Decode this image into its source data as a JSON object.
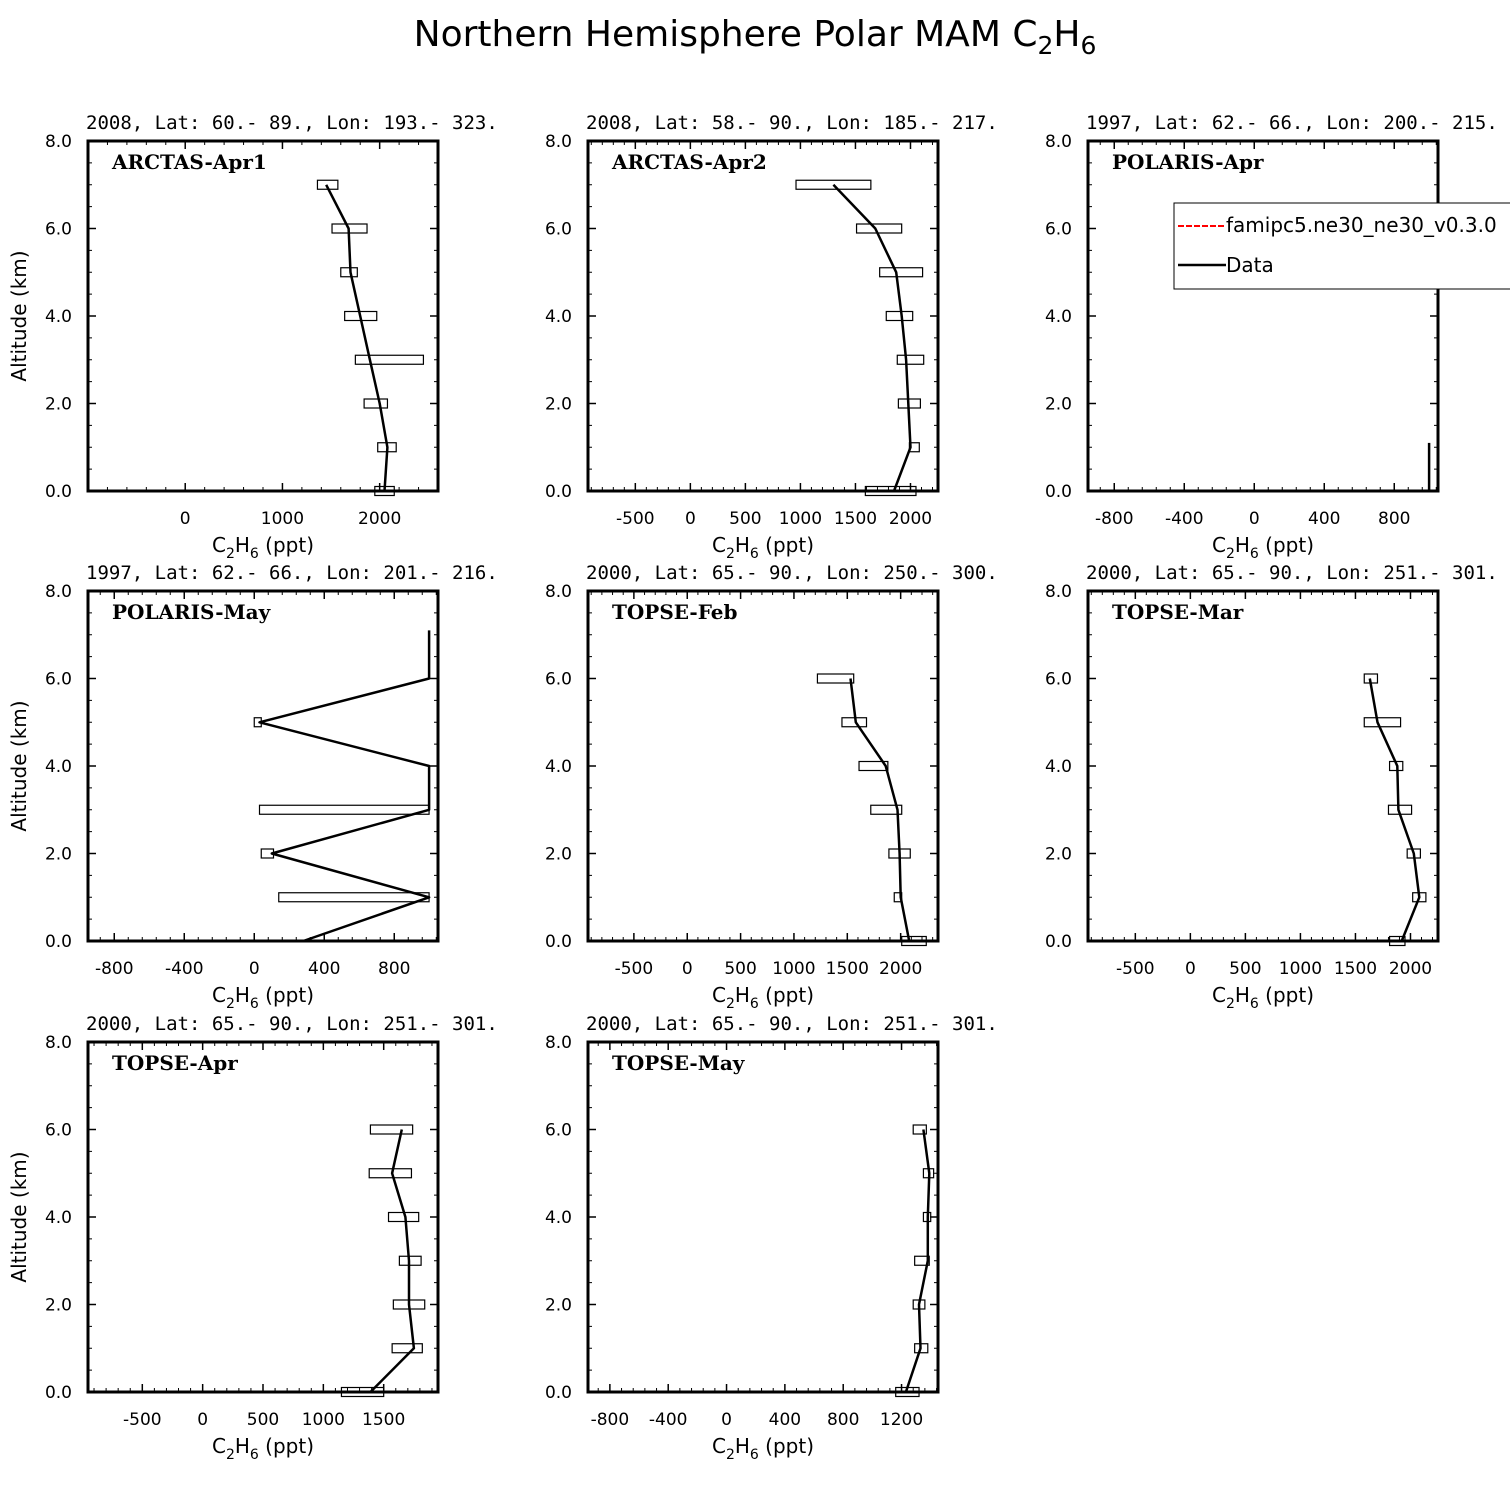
{
  "title_main": "Northern Hemisphere Polar MAM C",
  "title_sub1": "2",
  "title_h": "H",
  "title_sub2": "6",
  "legend": {
    "model": "famipc5.ne30_ne30_v0.3.0",
    "data": "Data",
    "model_color": "#ff0000",
    "data_color": "#000000"
  },
  "xlabel_c": "C",
  "xlabel_sub1": "2",
  "xlabel_h": "H",
  "xlabel_sub2": "6",
  "xlabel_units": " (ppt)",
  "ylabel": "Altitude (km)",
  "chart_data": [
    {
      "type": "line",
      "header": "2008, Lat:  60.- 89., Lon: 193.- 323.",
      "label": "ARCTAS-Apr1",
      "xlim": [
        -1000,
        2600
      ],
      "xticks": [
        0,
        1000,
        2000
      ],
      "ylim": [
        0,
        8
      ],
      "yticks": [
        "0.0",
        "2.0",
        "4.0",
        "6.0",
        "8.0"
      ],
      "show_ylabel": true,
      "series": [
        {
          "name": "Data",
          "x": [
            2050,
            2080,
            2000,
            1900,
            1800,
            1700,
            1680,
            1450
          ],
          "y": [
            0,
            1,
            2,
            3,
            4,
            5,
            6,
            7
          ]
        }
      ],
      "boxes": [
        {
          "y": 0,
          "x1": 1950,
          "x2": 2150
        },
        {
          "y": 1,
          "x1": 1980,
          "x2": 2170
        },
        {
          "y": 2,
          "x1": 1840,
          "x2": 2080
        },
        {
          "y": 3,
          "x1": 1750,
          "x2": 2450
        },
        {
          "y": 4,
          "x1": 1640,
          "x2": 1970
        },
        {
          "y": 5,
          "x1": 1600,
          "x2": 1770
        },
        {
          "y": 6,
          "x1": 1510,
          "x2": 1870
        },
        {
          "y": 7,
          "x1": 1360,
          "x2": 1570
        }
      ]
    },
    {
      "type": "line",
      "header": "2008, Lat:  58.- 90., Lon: 185.- 217.",
      "label": "ARCTAS-Apr2",
      "xlim": [
        -930,
        2250
      ],
      "xticks": [
        -500,
        0,
        500,
        1000,
        1500,
        2000
      ],
      "ylim": [
        0,
        8
      ],
      "yticks": [
        "0.0",
        "2.0",
        "4.0",
        "6.0",
        "8.0"
      ],
      "show_ylabel": false,
      "series": [
        {
          "name": "Data",
          "x": [
            1850,
            2000,
            1980,
            1960,
            1920,
            1870,
            1680,
            1300
          ],
          "y": [
            0,
            1,
            2,
            3,
            4,
            5,
            6,
            7
          ]
        }
      ],
      "boxes": [
        {
          "y": 0,
          "x1": 1590,
          "x2": 2050
        },
        {
          "y": 1,
          "x1": 1990,
          "x2": 2080
        },
        {
          "y": 2,
          "x1": 1890,
          "x2": 2090
        },
        {
          "y": 3,
          "x1": 1880,
          "x2": 2120
        },
        {
          "y": 4,
          "x1": 1780,
          "x2": 2020
        },
        {
          "y": 5,
          "x1": 1720,
          "x2": 2110
        },
        {
          "y": 6,
          "x1": 1510,
          "x2": 1920
        },
        {
          "y": 7,
          "x1": 960,
          "x2": 1640
        }
      ]
    },
    {
      "type": "line",
      "header": "1997, Lat: 62.- 66., Lon: 200.- 215.",
      "label": "POLARIS-Apr",
      "xlim": [
        -950,
        1050
      ],
      "xticks": [
        -800,
        -400,
        0,
        400,
        800
      ],
      "ylim": [
        0,
        8
      ],
      "yticks": [
        "0.0",
        "2.0",
        "4.0",
        "6.0",
        "8.0"
      ],
      "show_ylabel": false,
      "show_legend": true,
      "series": [
        {
          "name": "Data",
          "x": [
            999,
            999
          ],
          "y": [
            0,
            1.1
          ]
        }
      ],
      "boxes": []
    },
    {
      "type": "line",
      "header": "1997, Lat: 62.- 66., Lon: 201.- 216.",
      "label": "POLARIS-May",
      "xlim": [
        -950,
        1050
      ],
      "xticks": [
        -800,
        -400,
        0,
        400,
        800
      ],
      "ylim": [
        0,
        8
      ],
      "yticks": [
        "0.0",
        "2.0",
        "4.0",
        "6.0",
        "8.0"
      ],
      "show_ylabel": true,
      "series": [
        {
          "name": "Data",
          "x": [
            280,
            999,
            100,
            999,
            999,
            30,
            999,
            999
          ],
          "y": [
            0,
            1,
            2,
            3,
            4,
            5,
            6,
            7.1
          ]
        }
      ],
      "boxes": [
        {
          "y": 1,
          "x1": 140,
          "x2": 999
        },
        {
          "y": 2,
          "x1": 40,
          "x2": 110
        },
        {
          "y": 3,
          "x1": 30,
          "x2": 999
        },
        {
          "y": 5,
          "x1": 0,
          "x2": 40
        }
      ]
    },
    {
      "type": "line",
      "header": "2000, Lat: 65.- 90., Lon: 250.- 300.",
      "label": "TOPSE-Feb",
      "xlim": [
        -930,
        2350
      ],
      "xticks": [
        -500,
        0,
        500,
        1000,
        1500,
        2000
      ],
      "ylim": [
        0,
        8
      ],
      "yticks": [
        "0.0",
        "2.0",
        "4.0",
        "6.0",
        "8.0"
      ],
      "show_ylabel": false,
      "series": [
        {
          "name": "Data",
          "x": [
            2080,
            2000,
            1990,
            1970,
            1860,
            1580,
            1530
          ],
          "y": [
            0,
            1,
            2,
            3,
            4,
            5,
            6
          ]
        }
      ],
      "boxes": [
        {
          "y": 0,
          "x1": 2010,
          "x2": 2240
        },
        {
          "y": 1,
          "x1": 1940,
          "x2": 2010
        },
        {
          "y": 2,
          "x1": 1890,
          "x2": 2090
        },
        {
          "y": 3,
          "x1": 1720,
          "x2": 2010
        },
        {
          "y": 4,
          "x1": 1610,
          "x2": 1880
        },
        {
          "y": 5,
          "x1": 1450,
          "x2": 1680
        },
        {
          "y": 6,
          "x1": 1220,
          "x2": 1560
        }
      ]
    },
    {
      "type": "line",
      "header": "2000, Lat: 65.- 90., Lon: 251.- 301.",
      "label": "TOPSE-Mar",
      "xlim": [
        -930,
        2250
      ],
      "xticks": [
        -500,
        0,
        500,
        1000,
        1500,
        2000
      ],
      "ylim": [
        0,
        8
      ],
      "yticks": [
        "0.0",
        "2.0",
        "4.0",
        "6.0",
        "8.0"
      ],
      "show_ylabel": false,
      "series": [
        {
          "name": "Data",
          "x": [
            1920,
            2080,
            2030,
            1890,
            1880,
            1700,
            1630
          ],
          "y": [
            0,
            1,
            2,
            3,
            4,
            5,
            6
          ]
        }
      ],
      "boxes": [
        {
          "y": 0,
          "x1": 1810,
          "x2": 1950
        },
        {
          "y": 1,
          "x1": 2020,
          "x2": 2140
        },
        {
          "y": 2,
          "x1": 1970,
          "x2": 2090
        },
        {
          "y": 3,
          "x1": 1800,
          "x2": 2010
        },
        {
          "y": 4,
          "x1": 1810,
          "x2": 1930
        },
        {
          "y": 5,
          "x1": 1580,
          "x2": 1910
        },
        {
          "y": 6,
          "x1": 1580,
          "x2": 1700
        }
      ]
    },
    {
      "type": "line",
      "header": "2000, Lat: 65.- 90., Lon: 251.- 301.",
      "label": "TOPSE-Apr",
      "xlim": [
        -950,
        1950
      ],
      "xticks": [
        -500,
        0,
        500,
        1000,
        1500
      ],
      "ylim": [
        0,
        8
      ],
      "yticks": [
        "0.0",
        "2.0",
        "4.0",
        "6.0",
        "8.0"
      ],
      "show_ylabel": true,
      "series": [
        {
          "name": "Data",
          "x": [
            1390,
            1750,
            1710,
            1710,
            1680,
            1570,
            1650
          ],
          "y": [
            0,
            1,
            2,
            3,
            4,
            5,
            6
          ]
        }
      ],
      "boxes": [
        {
          "y": 0,
          "x1": 1150,
          "x2": 1500
        },
        {
          "y": 1,
          "x1": 1570,
          "x2": 1820
        },
        {
          "y": 2,
          "x1": 1580,
          "x2": 1840
        },
        {
          "y": 3,
          "x1": 1630,
          "x2": 1810
        },
        {
          "y": 4,
          "x1": 1540,
          "x2": 1790
        },
        {
          "y": 5,
          "x1": 1380,
          "x2": 1730
        },
        {
          "y": 6,
          "x1": 1390,
          "x2": 1740
        }
      ]
    },
    {
      "type": "line",
      "header": "2000, Lat: 65.- 90., Lon: 251.- 301.",
      "label": "TOPSE-May",
      "xlim": [
        -950,
        1450
      ],
      "xticks": [
        -800,
        -400,
        0,
        400,
        800,
        1200
      ],
      "ylim": [
        0,
        8
      ],
      "yticks": [
        "0.0",
        "2.0",
        "4.0",
        "6.0",
        "8.0"
      ],
      "show_ylabel": false,
      "series": [
        {
          "name": "Data",
          "x": [
            1230,
            1330,
            1320,
            1380,
            1380,
            1390,
            1350
          ],
          "y": [
            0,
            1,
            2,
            3,
            4,
            5,
            6
          ]
        }
      ],
      "boxes": [
        {
          "y": 0,
          "x1": 1160,
          "x2": 1320
        },
        {
          "y": 1,
          "x1": 1290,
          "x2": 1380
        },
        {
          "y": 2,
          "x1": 1280,
          "x2": 1360
        },
        {
          "y": 3,
          "x1": 1290,
          "x2": 1390
        },
        {
          "y": 4,
          "x1": 1350,
          "x2": 1400
        },
        {
          "y": 5,
          "x1": 1350,
          "x2": 1420
        },
        {
          "y": 6,
          "x1": 1280,
          "x2": 1370
        }
      ]
    }
  ]
}
